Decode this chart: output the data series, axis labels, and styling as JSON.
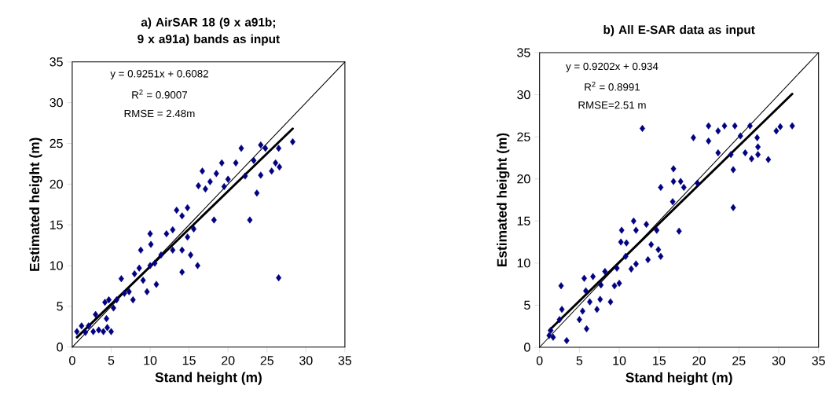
{
  "chart_data": [
    {
      "type": "scatter",
      "title": "a) AirSAR 18 (9 x a91b; 9 x a91a) bands as input",
      "xlabel": "Stand height (m)",
      "ylabel": "Estimated height (m)",
      "xlim": [
        0,
        35
      ],
      "ylim": [
        0,
        35
      ],
      "xticks": [
        0,
        5,
        10,
        15,
        20,
        25,
        30,
        35
      ],
      "yticks": [
        0,
        5,
        10,
        15,
        20,
        25,
        30,
        35
      ],
      "grid": false,
      "annotations": [
        "y = 0.9251x + 0.6082",
        "R$^{2}$ = 0.9007",
        "RMSE = 2.48m"
      ],
      "series": [
        {
          "type": "scatter",
          "marker": "diamond",
          "color": "#000080",
          "x": [
            0.6,
            1.2,
            1.7,
            2.1,
            2.7,
            3.0,
            3.4,
            4.0,
            4.4,
            4.5,
            5.0,
            4.2,
            4.7,
            5.3,
            5.7,
            6.3,
            6.7,
            7.3,
            7.8,
            8.0,
            8.6,
            8.8,
            9.1,
            9.6,
            10.0,
            10.1,
            10.0,
            10.6,
            10.8,
            11.4,
            12.1,
            12.9,
            12.9,
            13.4,
            14.1,
            14.8,
            14.1,
            14.1,
            14.8,
            15.2,
            15.6,
            16.1,
            16.2,
            16.7,
            17.1,
            17.7,
            18.2,
            18.5,
            19.2,
            19.5,
            20.0,
            21.0,
            21.7,
            22.2,
            22.8,
            23.3,
            23.7,
            24.2,
            24.2,
            24.8,
            25.6,
            26.1,
            26.5,
            26.6,
            26.5,
            28.3
          ],
          "values": [
            1.9,
            2.6,
            1.8,
            2.6,
            1.9,
            4.0,
            2.1,
            1.9,
            3.5,
            2.4,
            1.9,
            5.5,
            5.8,
            4.8,
            5.8,
            8.4,
            6.6,
            6.8,
            5.8,
            9.0,
            9.7,
            11.9,
            8.2,
            6.8,
            13.9,
            12.6,
            10.0,
            10.3,
            7.7,
            11.3,
            13.9,
            14.4,
            11.9,
            16.8,
            16.1,
            17.1,
            11.9,
            9.2,
            13.5,
            11.3,
            14.5,
            10.0,
            19.8,
            21.6,
            19.4,
            20.3,
            15.6,
            21.3,
            22.6,
            19.7,
            20.6,
            22.6,
            24.4,
            21.0,
            15.6,
            22.9,
            18.9,
            24.8,
            21.1,
            24.4,
            21.6,
            22.6,
            24.4,
            22.1,
            8.5,
            25.2
          ]
        },
        {
          "type": "line",
          "color": "#000000",
          "x": [
            0,
            35
          ],
          "values": [
            0,
            35
          ]
        },
        {
          "type": "line",
          "color": "#000000",
          "x": [
            0.6,
            28.3
          ],
          "values": [
            1.2,
            26.8
          ]
        }
      ]
    },
    {
      "type": "scatter",
      "title": "b) All E-SAR data as input",
      "xlabel": "Stand height (m)",
      "ylabel": "Estimated height (m)",
      "xlim": [
        0,
        35
      ],
      "ylim": [
        0,
        35
      ],
      "xticks": [
        0,
        5,
        10,
        15,
        20,
        25,
        30,
        35
      ],
      "yticks": [
        0,
        5,
        10,
        15,
        20,
        25,
        30,
        35
      ],
      "grid": false,
      "annotations": [
        "y = 0.9202x + 0.934",
        "R$^{2}$ = 0.8991",
        "RMSE=2.51 m"
      ],
      "series": [
        {
          "type": "scatter",
          "marker": "diamond",
          "color": "#000080",
          "x": [
            1.4,
            1.2,
            1.7,
            2.7,
            2.8,
            2.5,
            3.4,
            5.0,
            5.4,
            5.9,
            5.6,
            5.8,
            6.3,
            6.7,
            7.2,
            7.6,
            7.7,
            8.2,
            8.9,
            9.4,
            9.7,
            10.0,
            10.2,
            10.3,
            10.8,
            10.9,
            11.5,
            11.8,
            12.1,
            12.1,
            12.9,
            13.4,
            13.6,
            14.0,
            14.7,
            14.9,
            15.2,
            15.2,
            16.7,
            16.8,
            16.8,
            17.5,
            17.7,
            18.1,
            19.3,
            19.8,
            21.2,
            21.2,
            22.4,
            22.4,
            23.2,
            24.0,
            24.3,
            24.3,
            24.5,
            25.2,
            25.8,
            26.4,
            26.6,
            27.3,
            27.4,
            27.4,
            28.7,
            29.7,
            30.2,
            31.7
          ],
          "values": [
            2.0,
            1.4,
            1.2,
            7.3,
            4.5,
            3.3,
            0.8,
            3.3,
            4.3,
            2.2,
            8.2,
            6.7,
            5.4,
            8.4,
            4.5,
            5.7,
            7.4,
            9.0,
            5.4,
            7.3,
            9.4,
            7.6,
            12.5,
            13.9,
            10.8,
            12.4,
            9.3,
            15.0,
            13.9,
            9.9,
            26.0,
            14.6,
            10.4,
            12.2,
            13.9,
            11.6,
            10.8,
            19.0,
            17.3,
            21.2,
            19.7,
            13.8,
            19.7,
            19.0,
            24.9,
            19.5,
            26.3,
            24.5,
            25.7,
            23.1,
            26.3,
            22.9,
            21.1,
            16.6,
            26.3,
            25.1,
            23.1,
            26.3,
            22.4,
            24.9,
            23.8,
            22.9,
            22.3,
            25.7,
            26.2,
            26.3
          ]
        },
        {
          "type": "line",
          "color": "#000000",
          "x": [
            0,
            35
          ],
          "values": [
            0,
            35
          ]
        },
        {
          "type": "line",
          "color": "#000000",
          "x": [
            1.2,
            31.7
          ],
          "values": [
            2.0,
            30.1
          ]
        }
      ]
    }
  ]
}
